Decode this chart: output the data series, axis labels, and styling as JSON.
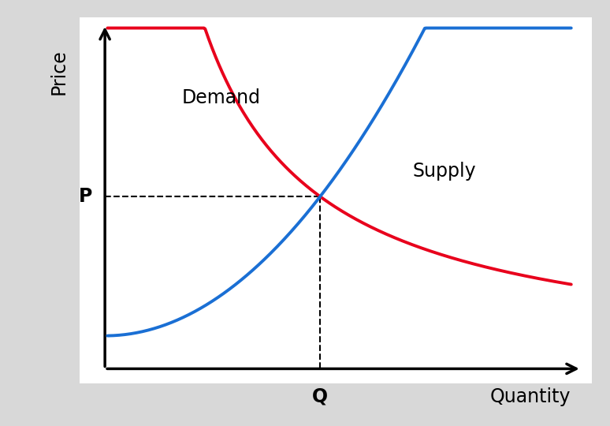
{
  "background_color": "#d8d8d8",
  "plot_background": "#ffffff",
  "demand_color": "#e8001c",
  "supply_color": "#1a6fd4",
  "dashed_color": "#000000",
  "axis_color": "#000000",
  "demand_label": "Demand",
  "supply_label": "Supply",
  "price_label": "P",
  "quantity_label": "Q",
  "x_axis_label": "Quantity",
  "y_axis_label": "Price",
  "label_fontsize": 17,
  "axis_label_fontsize": 17,
  "pq_fontsize": 17,
  "line_width": 2.8,
  "fig_width": 7.74,
  "fig_height": 5.4
}
